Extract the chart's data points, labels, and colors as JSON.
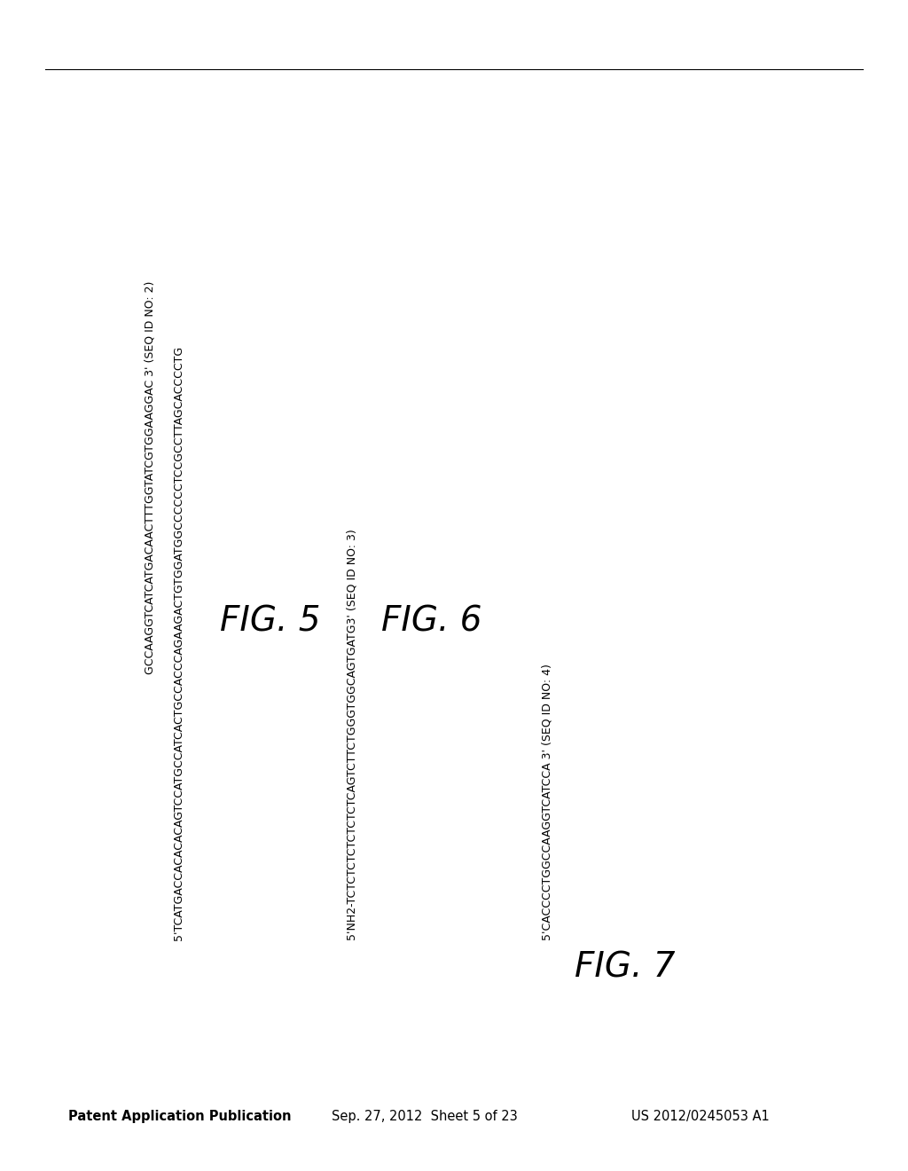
{
  "background_color": "#ffffff",
  "header_left": "Patent Application Publication",
  "header_center": "Sep. 27, 2012  Sheet 5 of 23",
  "header_right": "US 2012/0245053 A1",
  "fig5_seq_line1": "5'TCATGACCACACACAGTCCATGCCATCACTGCCACCCAGAAGACTGTGGATGGCCCCCCTCCGCCTTAGCACCCCTG",
  "fig5_seq_line2": "GCCAAGGTCATCATGACAACTTTGGTATCGTGGAAGGAC 3' (SEQ ID NO: 2)",
  "fig5_label": "FIG. 5",
  "fig6_seq": "5'NH2-TCTCTCTCTCTCTCTCAGTCTTCTGGGTGGCAGTGATG3' (SEQ ID NO: 3)",
  "fig6_label": "FIG. 6",
  "fig7_seq": "5'CACCCCTGGCCAAGGTCATCCA 3' (SEQ ID NO: 4)",
  "fig7_label": "FIG. 7"
}
